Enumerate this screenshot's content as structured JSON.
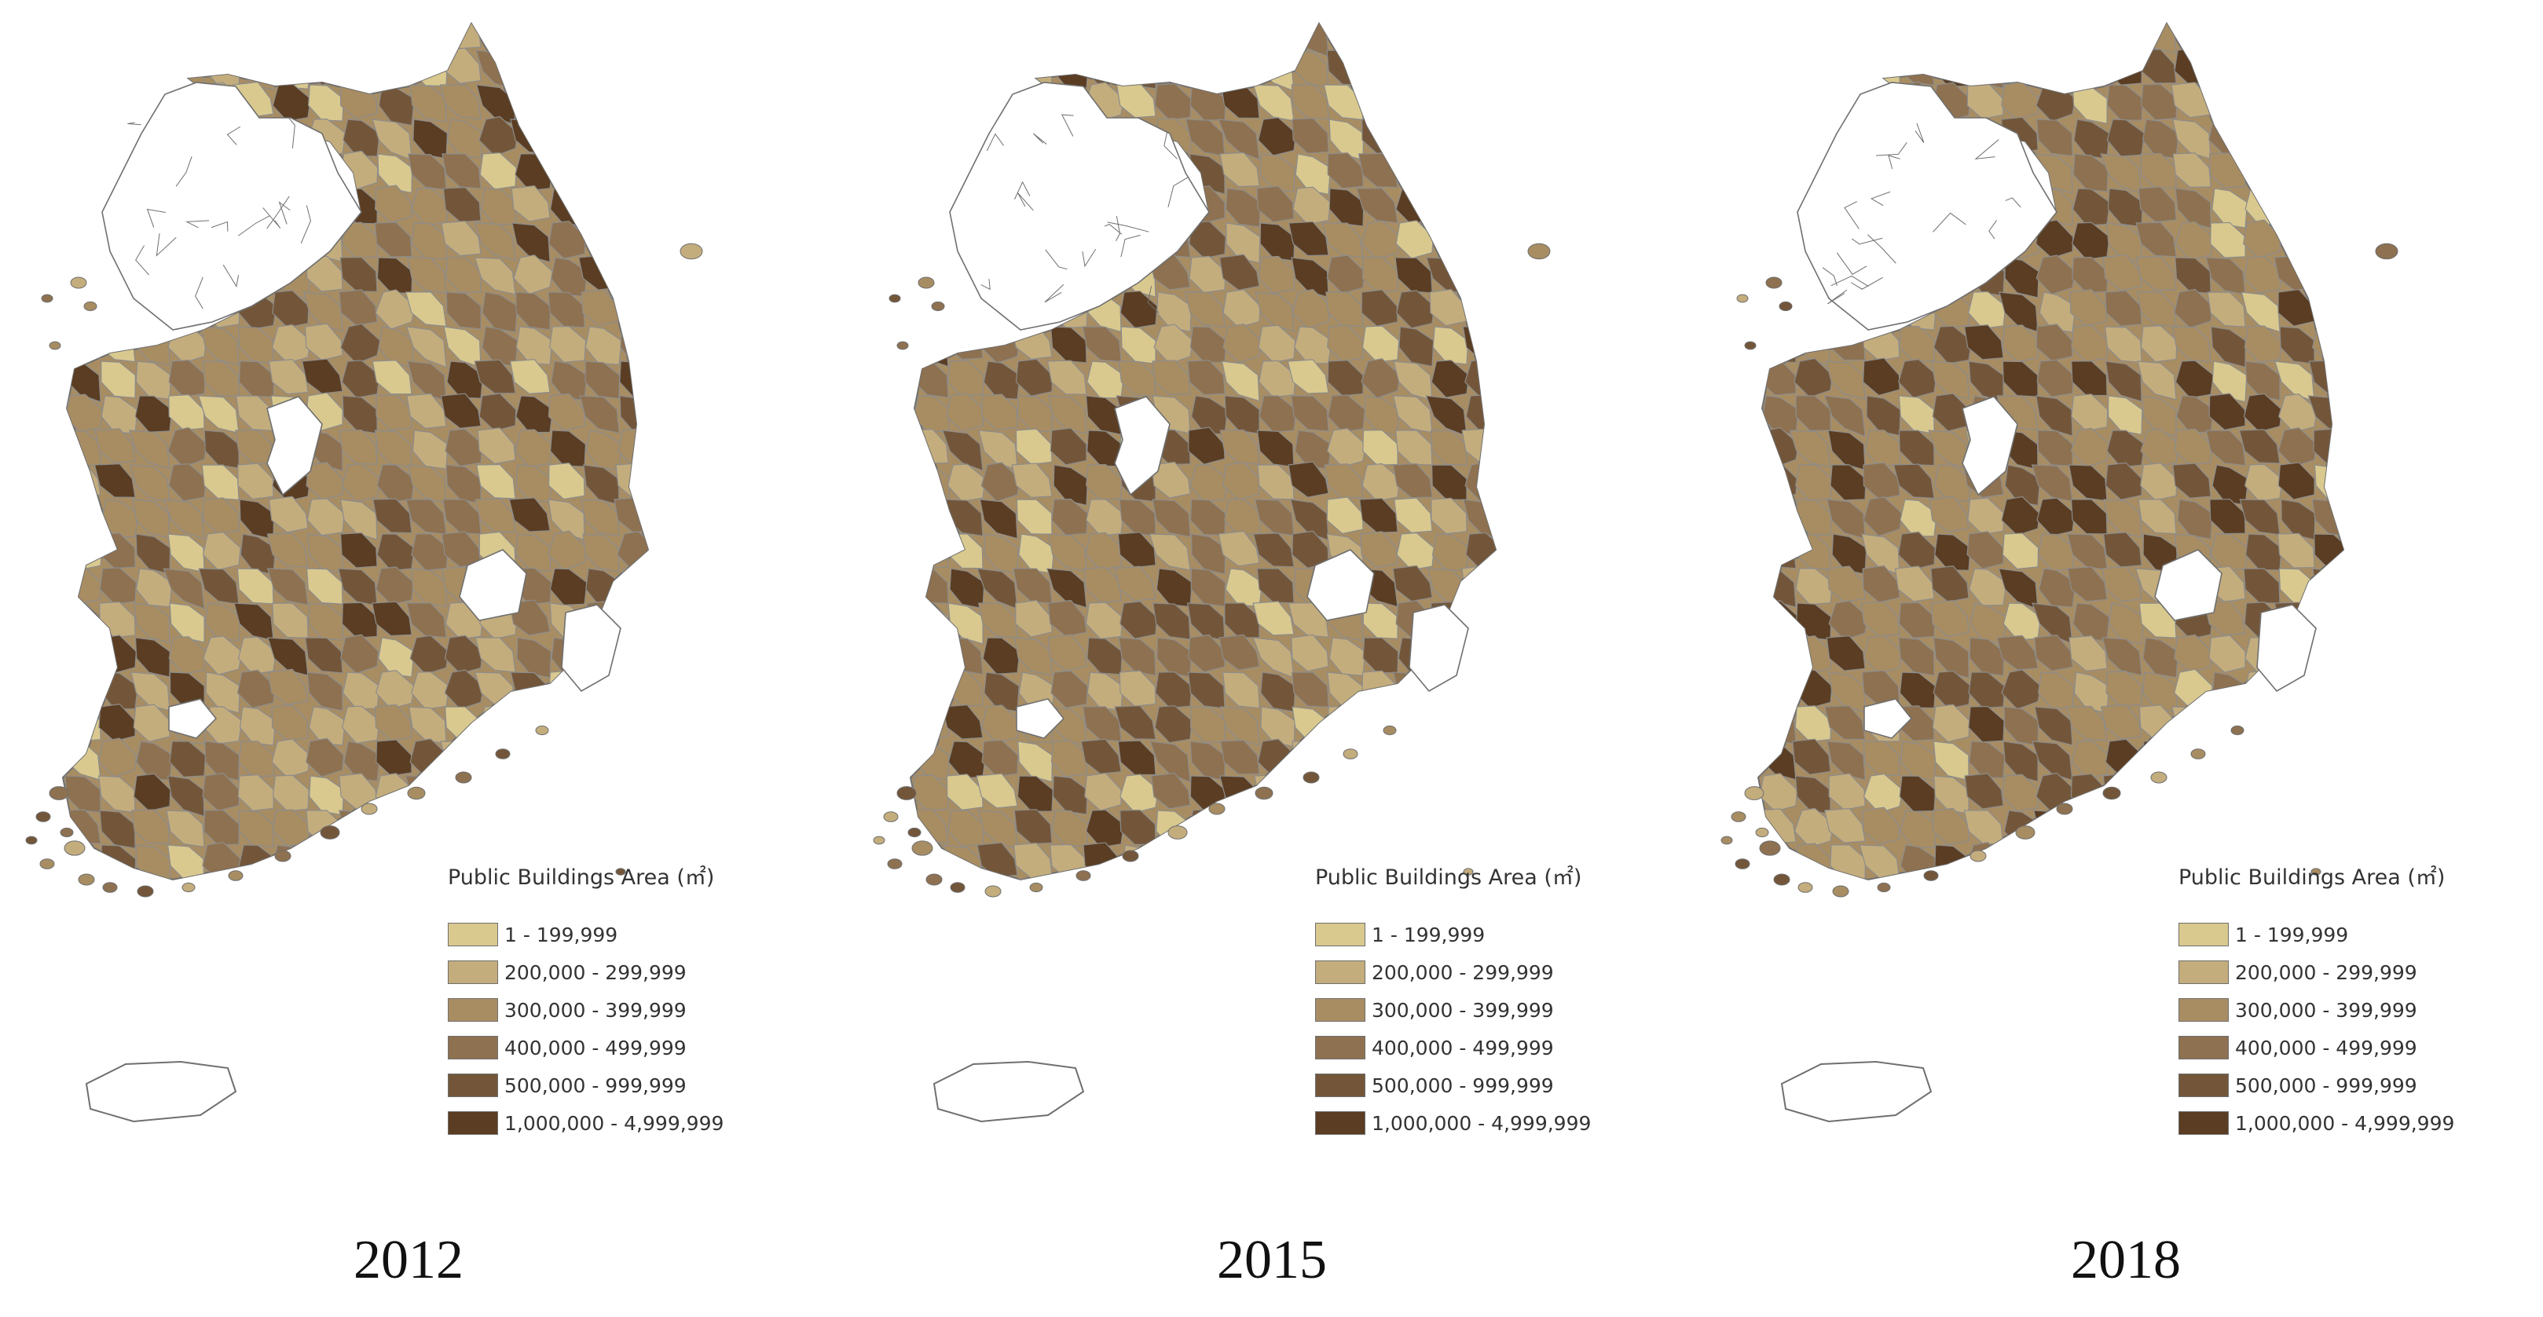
{
  "legend": {
    "title": "Public Buildings Area (㎡)",
    "classes": [
      {
        "label": "1 - 199,999",
        "color": "#d9c98f"
      },
      {
        "label": "200,000 - 299,999",
        "color": "#c4ad7d"
      },
      {
        "label": "300,000 - 399,999",
        "color": "#a88d63"
      },
      {
        "label": "400,000 - 499,999",
        "color": "#8e7150"
      },
      {
        "label": "500,000 - 999,999",
        "color": "#735639"
      },
      {
        "label": "1,000,000 - 4,999,999",
        "color": "#5a3d22"
      }
    ]
  },
  "maps": [
    {
      "year": "2012",
      "class_shares": [
        0.12,
        0.22,
        0.24,
        0.18,
        0.14,
        0.1
      ]
    },
    {
      "year": "2015",
      "class_shares": [
        0.09,
        0.2,
        0.23,
        0.2,
        0.16,
        0.12
      ]
    },
    {
      "year": "2018",
      "class_shares": [
        0.05,
        0.14,
        0.22,
        0.24,
        0.2,
        0.15
      ]
    }
  ],
  "colors": {
    "outline": "#6f6f6f",
    "unmapped_fill": "#ffffff",
    "border": "#8c8c8c"
  }
}
